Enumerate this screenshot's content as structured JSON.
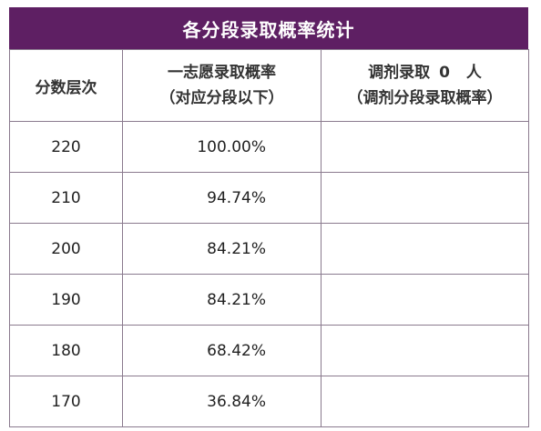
{
  "title": "各分段录取概率统计",
  "headers": {
    "score_level": "分数层次",
    "first_choice_line1": "一志愿录取概率",
    "first_choice_line2": "（对应分段以下）",
    "adjust_prefix": "调剂录取",
    "adjust_count": "0",
    "adjust_unit": "人",
    "adjust_line2": "（调剂分段录取概率）"
  },
  "rows": [
    {
      "score": "220",
      "rate": "100.00%",
      "adjust": ""
    },
    {
      "score": "210",
      "rate": "94.74%",
      "adjust": ""
    },
    {
      "score": "200",
      "rate": "84.21%",
      "adjust": ""
    },
    {
      "score": "190",
      "rate": "84.21%",
      "adjust": ""
    },
    {
      "score": "180",
      "rate": "68.42%",
      "adjust": ""
    },
    {
      "score": "170",
      "rate": "36.84%",
      "adjust": ""
    }
  ],
  "colors": {
    "header_bg": "#5e1f63",
    "border": "#8a7a8e"
  }
}
